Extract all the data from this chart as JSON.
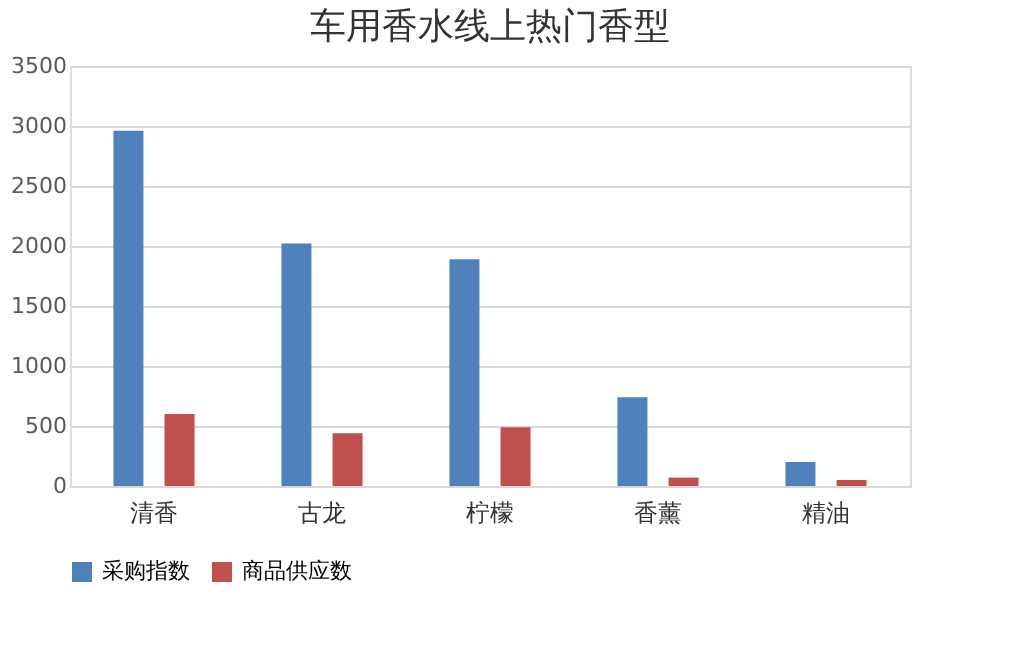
{
  "chart_data": {
    "type": "bar",
    "title": "车用香水线上热门香型",
    "categories": [
      "清香",
      "古龙",
      "柠檬",
      "香薰",
      "精油"
    ],
    "series": [
      {
        "name": "采购指数",
        "color": "#4f81bd",
        "values": [
          2960,
          2020,
          1890,
          740,
          200
        ]
      },
      {
        "name": "商品供应数",
        "color": "#c0504d",
        "values": [
          600,
          440,
          490,
          70,
          50
        ]
      }
    ],
    "ylim": [
      0,
      3500
    ],
    "yticks": [
      0,
      500,
      1000,
      1500,
      2000,
      2500,
      3000,
      3500
    ],
    "grid": "y",
    "legend": "bottom"
  }
}
